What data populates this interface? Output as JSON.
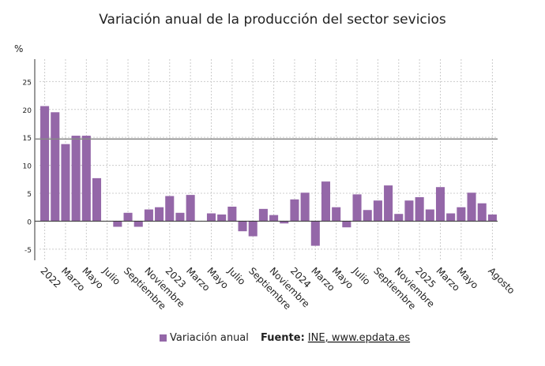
{
  "chart_data": {
    "type": "bar",
    "title": "Variación anual de la producción del sector sevicios",
    "y_unit": "%",
    "categories": [
      "2022",
      null,
      "Marzo",
      null,
      "Mayo",
      null,
      "Julio",
      null,
      "Septiembre",
      null,
      "Noviembre",
      null,
      "2023",
      null,
      "Marzo",
      null,
      "Mayo",
      null,
      "Julio",
      null,
      "Septiembre",
      null,
      "Noviembre",
      null,
      "2024",
      null,
      "Marzo",
      null,
      "Mayo",
      null,
      "Julio",
      null,
      "Septiembre",
      null,
      "Noviembre",
      null,
      "2025",
      null,
      "Marzo",
      null,
      "Mayo",
      null,
      null,
      "Agosto"
    ],
    "series": [
      {
        "name": "Variación anual",
        "color": "#9467a8",
        "values": [
          20.6,
          19.5,
          13.8,
          15.3,
          15.3,
          7.7,
          0,
          -1.0,
          1.5,
          -1.0,
          2.1,
          2.5,
          4.5,
          1.5,
          4.7,
          0,
          1.4,
          1.2,
          2.6,
          -1.8,
          -2.7,
          2.2,
          1.1,
          -0.4,
          3.9,
          5.1,
          -4.4,
          7.1,
          2.5,
          -1.1,
          4.8,
          2.0,
          3.7,
          6.4,
          1.3,
          3.7,
          4.3,
          2.1,
          6.1,
          1.4,
          2.5,
          5.1,
          3.2,
          1.2
        ]
      }
    ],
    "reference_line": 14.7,
    "ylim": [
      -7,
      29
    ],
    "yticks": [
      -5,
      0,
      5,
      10,
      15,
      20,
      25
    ],
    "grid": true,
    "legend": "bottom",
    "source_label": "Fuente:",
    "source": "INE, www.epdata.es"
  }
}
